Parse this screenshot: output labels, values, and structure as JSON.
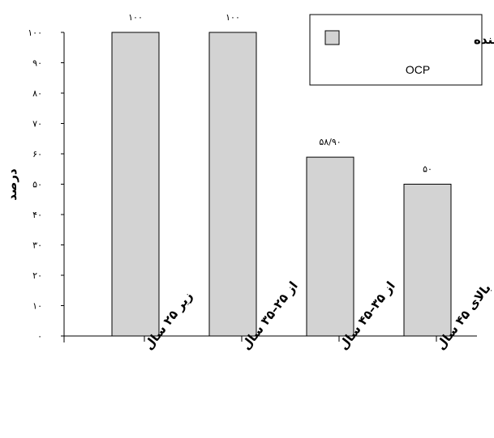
{
  "chart_data": {
    "type": "bar",
    "categories": [
      "زیر ۲۵ سال",
      "از ۲۵–۳۵ سال",
      "از ۳۵–۴۵ سال",
      "بالای ۴۵ سال"
    ],
    "values": [
      100,
      100,
      58.9,
      50
    ],
    "value_labels": [
      "۱۰۰",
      "۱۰۰",
      "۵۸/۹۰",
      "۵۰"
    ],
    "ylabel": "درصد",
    "ylim": [
      0,
      100
    ],
    "yticks": [
      0,
      10,
      20,
      30,
      40,
      50,
      60,
      70,
      80,
      90,
      100
    ],
    "ytick_labels": [
      "۰",
      "۱۰",
      "۲۰",
      "۳۰",
      "۴۰",
      "۵۰",
      "۶۰",
      "۷۰",
      "۸۰",
      "۹۰",
      "۱۰۰"
    ],
    "series": [
      {
        "name": "بیماران مصرف کننده",
        "values": [
          100,
          100,
          58.9,
          50
        ]
      }
    ],
    "legend_subtext": "OCP",
    "legend_position": "top-right",
    "bar_color": "#d3d3d3",
    "grid": false
  }
}
